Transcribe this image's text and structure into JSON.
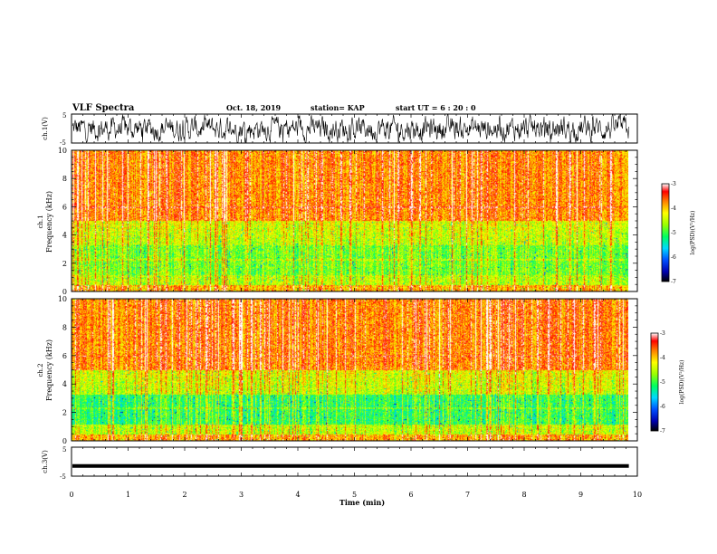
{
  "header": {
    "title": "VLF Spectra",
    "date": "Oct. 18, 2019",
    "station": "station= KAP",
    "start": "start  UT  =   6  : 20 : 0"
  },
  "chart_data": [
    {
      "type": "line",
      "name": "ch1-waveform",
      "ylabel": "ch.1(V)",
      "ylim": [
        -5,
        5
      ],
      "ytick_labels": [
        "5",
        "-5"
      ],
      "x_range_min": [
        0,
        9.85
      ]
    },
    {
      "type": "heatmap",
      "name": "ch1-spectrogram",
      "ylabel": "ch.1\nFrequency (kHz)",
      "ylim": [
        0,
        10
      ],
      "ytick_labels": [
        "0",
        "2",
        "4",
        "6",
        "8",
        "10"
      ],
      "x_range_min": [
        0,
        9.85
      ],
      "colorbar": {
        "label": "log(PSD)(V²/Hz)",
        "range": [
          -7,
          -3
        ],
        "ticks": [
          "-3",
          "-4",
          "-5",
          "-6",
          "-7"
        ]
      }
    },
    {
      "type": "heatmap",
      "name": "ch2-spectrogram",
      "ylabel": "ch.2\nFrequency (kHz)",
      "ylim": [
        0,
        10
      ],
      "ytick_labels": [
        "0",
        "2",
        "4",
        "6",
        "8",
        "10"
      ],
      "x_range_min": [
        0,
        9.85
      ],
      "colorbar": {
        "label": "log(PSD)(V²/Hz)",
        "range": [
          -7,
          -3
        ],
        "ticks": [
          "-3",
          "-4",
          "-5",
          "-6",
          "-7"
        ]
      }
    },
    {
      "type": "line",
      "name": "ch3-waveform",
      "ylabel": "ch.3(V)",
      "ylim": [
        -5,
        5
      ],
      "ytick_labels": [
        "5",
        "-5"
      ],
      "x_range_min": [
        0,
        9.85
      ],
      "constant_value": -1.5
    }
  ],
  "x_axis": {
    "label": "Time (min)",
    "range": [
      0,
      10
    ],
    "tick_labels": [
      "0",
      "1",
      "2",
      "3",
      "4",
      "5",
      "6",
      "7",
      "8",
      "9",
      "10"
    ]
  },
  "texts": {
    "ch1_label": "ch.1(V)",
    "ch1_spec_label_a": "ch.1",
    "ch1_spec_label_b": "Frequency (kHz)",
    "ch2_spec_label_a": "ch.2",
    "ch2_spec_label_b": "Frequency (kHz)",
    "ch3_label": "ch.3(V)",
    "colorbar_label": "log(PSD)(V²/Hz)"
  }
}
